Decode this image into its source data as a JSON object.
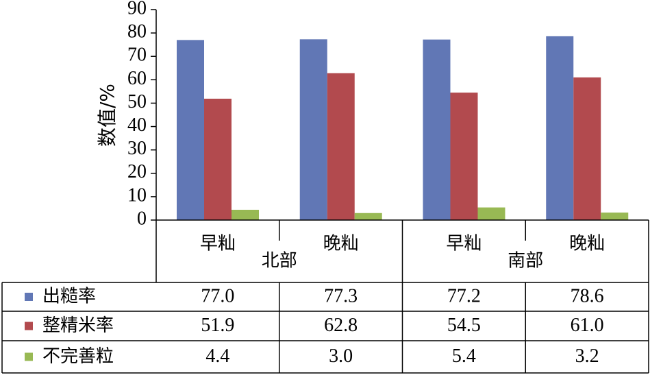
{
  "chart_data": {
    "type": "bar",
    "ylabel": "数值/%",
    "ylim": [
      0,
      90
    ],
    "yticks": [
      0,
      10,
      20,
      30,
      40,
      50,
      60,
      70,
      80,
      90
    ],
    "grid": false,
    "legend": "data-table-left",
    "categories": [
      "早籼",
      "晚籼",
      "早籼",
      "晚籼"
    ],
    "groups": [
      {
        "label": "北部",
        "span": [
          0,
          1
        ]
      },
      {
        "label": "南部",
        "span": [
          2,
          3
        ]
      }
    ],
    "series": [
      {
        "name": "出糙率",
        "color": "#6177B5",
        "values": [
          77.0,
          77.3,
          77.2,
          78.6
        ],
        "labels": [
          "77.0",
          "77.3",
          "77.2",
          "78.6"
        ]
      },
      {
        "name": "整精米率",
        "color": "#B24A4E",
        "values": [
          51.9,
          62.8,
          54.5,
          61.0
        ],
        "labels": [
          "51.9",
          "62.8",
          "54.5",
          "61.0"
        ]
      },
      {
        "name": "不完善粒",
        "color": "#98B954",
        "values": [
          4.4,
          3.0,
          5.4,
          3.2
        ],
        "labels": [
          "4.4",
          "3.0",
          "5.4",
          "3.2"
        ]
      }
    ]
  }
}
